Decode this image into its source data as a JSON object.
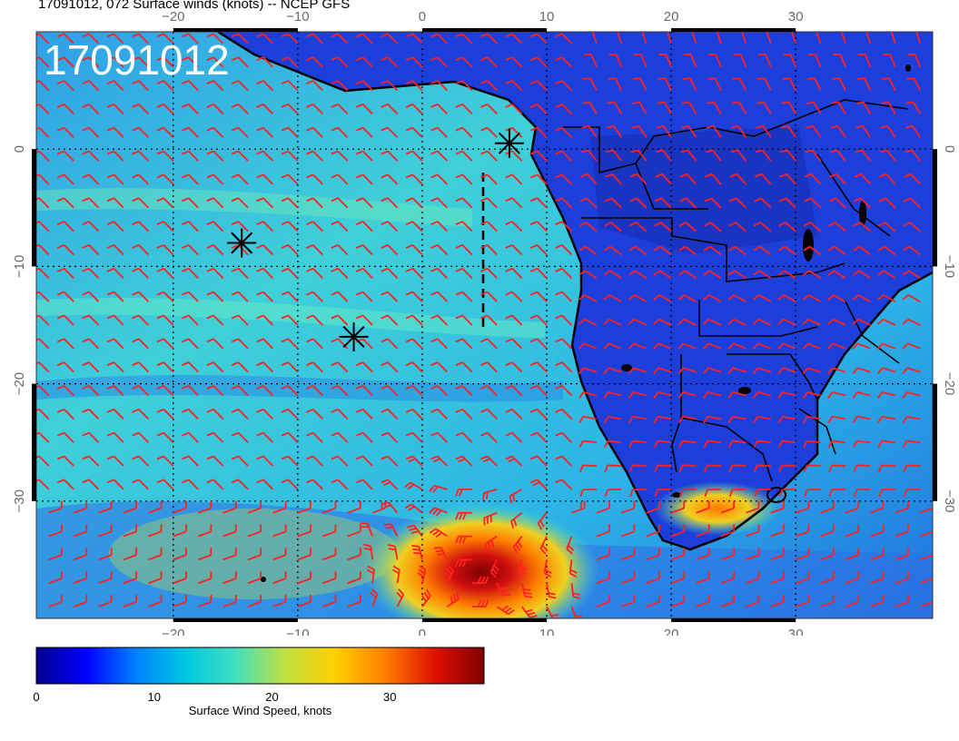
{
  "header": {
    "title": "17091012, 072 Surface winds (knots) -- NCEP GFS"
  },
  "map": {
    "stamp": "17091012",
    "lon_top_labels": [
      "−20",
      "−10",
      "0",
      "10",
      "20",
      "30"
    ],
    "lon_bottom_labels": [
      "−20",
      "−10",
      "0",
      "10",
      "20",
      "30"
    ],
    "lat_left_labels": [
      "0",
      "−10",
      "−20",
      "−30"
    ],
    "lat_right_labels": [
      "0",
      "−10",
      "−20",
      "−30"
    ],
    "lon_values": [
      -20,
      -10,
      0,
      10,
      20,
      30
    ],
    "lat_values": [
      0,
      -10,
      -20,
      -30
    ],
    "lon_range": [
      -31,
      41
    ],
    "lat_range": [
      -40,
      10
    ],
    "markers": [
      {
        "name": "asterisk-marker",
        "lon": -14.5,
        "lat": -8.0
      },
      {
        "name": "asterisk-marker",
        "lon": -5.5,
        "lat": -16.0
      },
      {
        "name": "asterisk-marker",
        "lon": 7.0,
        "lat": 0.5
      }
    ],
    "high_wind_core": {
      "lon": 4,
      "lat": -36,
      "speed_kt": 35
    },
    "barb_color": "#ff2020",
    "grid_line_color": "#000000",
    "ocean_color_hint": "#3fc6d8",
    "land_color_hint": "#1f3fd6"
  },
  "colorbar": {
    "min": 0,
    "max": 38,
    "ticks": [
      "0",
      "10",
      "20",
      "30"
    ],
    "tick_values": [
      0,
      10,
      20,
      30
    ],
    "label": "Surface Wind Speed, knots",
    "stops": [
      "#00008f",
      "#0000ff",
      "#0080ff",
      "#00c8e0",
      "#40e0c0",
      "#c0e040",
      "#ffd000",
      "#ff8000",
      "#e01000",
      "#800000"
    ]
  }
}
